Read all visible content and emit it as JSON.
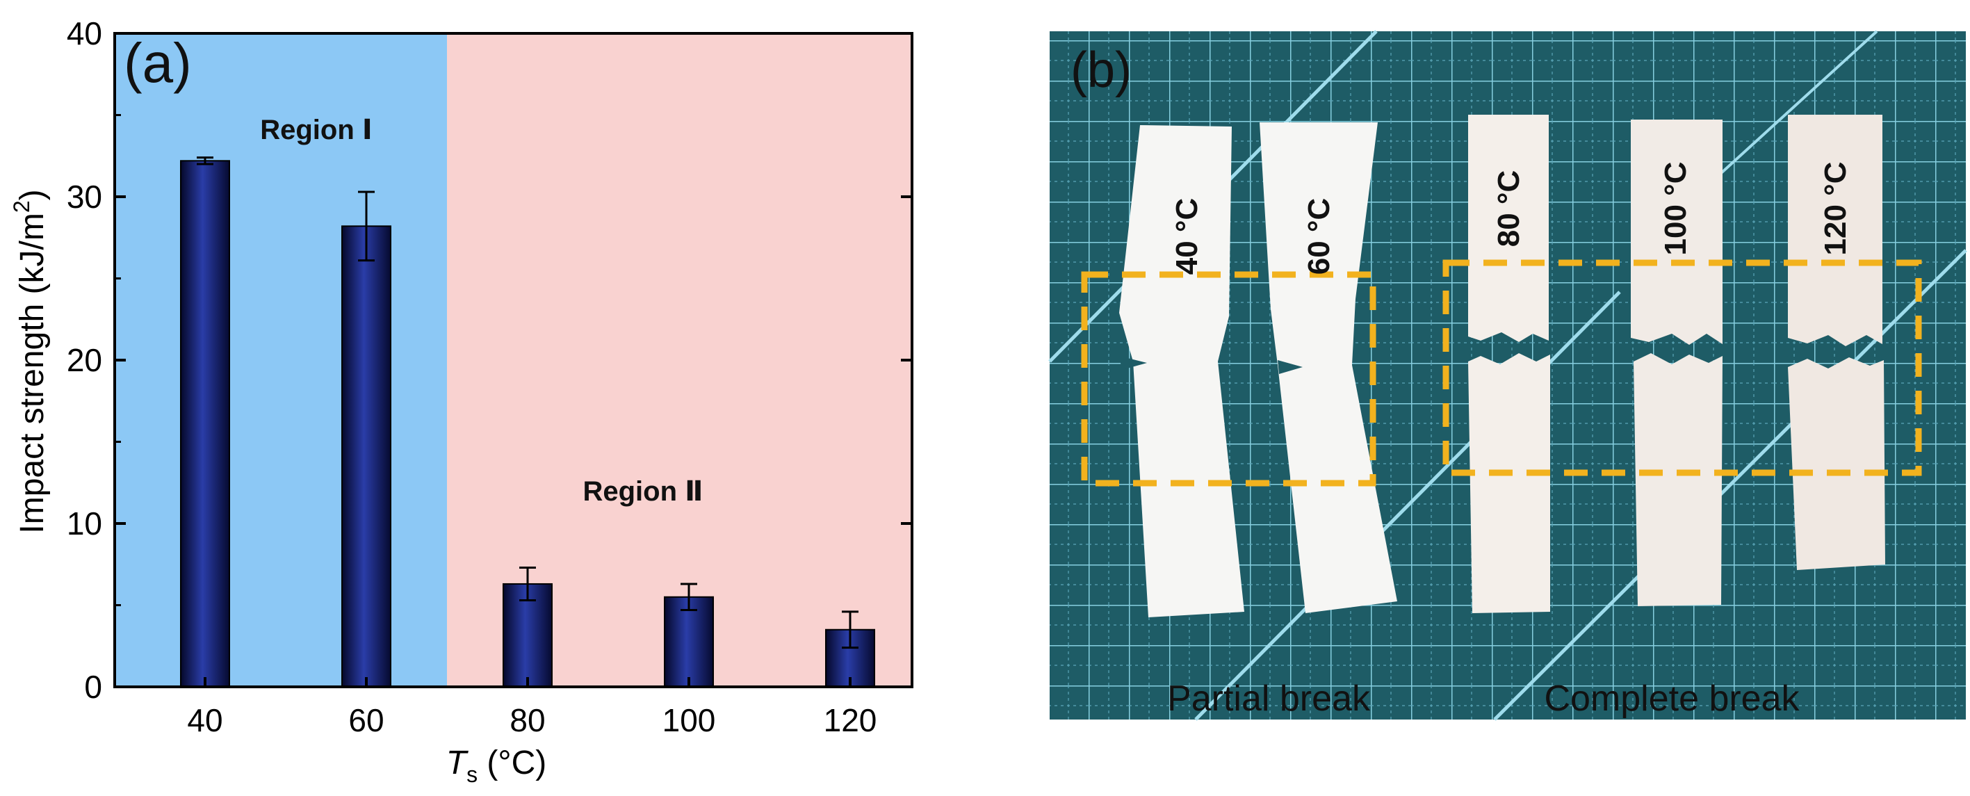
{
  "panel_a": {
    "label": "(a)",
    "region1_label": "Region Ⅰ",
    "region2_label": "Region Ⅱ",
    "ylabel_main": "Impact strength (kJ/m",
    "ylabel_sup": "2",
    "ylabel_close": ")",
    "xlabel_main": "T",
    "xlabel_sub": "s",
    "xlabel_unit": " (°C)",
    "region1_color": "#8CC8F5",
    "region2_color": "#F9D2D0",
    "bar_color": "#1C2C8C"
  },
  "chart_data": {
    "type": "bar",
    "categories": [
      "40",
      "60",
      "80",
      "100",
      "120"
    ],
    "values": [
      32.2,
      28.2,
      6.3,
      5.5,
      3.5
    ],
    "errors": [
      0.2,
      2.1,
      1.0,
      0.8,
      1.1
    ],
    "title": "",
    "xlabel": "Ts (°C)",
    "ylabel": "Impact strength (kJ/m2)",
    "ylim": [
      0,
      40
    ],
    "yticks": [
      0,
      10,
      20,
      30,
      40
    ],
    "regions": [
      {
        "name": "Region Ⅰ",
        "categories": [
          "40",
          "60"
        ]
      },
      {
        "name": "Region Ⅱ",
        "categories": [
          "80",
          "100",
          "120"
        ]
      }
    ]
  },
  "panel_b": {
    "label": "(b)",
    "samples": [
      "40 °C",
      "60 °C",
      "80 °C",
      "100 °C",
      "120 °C"
    ],
    "caption_partial": "Partial break",
    "caption_complete": "Complete break",
    "mat_color": "#1E5C66",
    "grid_color": "#7FC6D6",
    "box_color": "#F2B21E"
  }
}
